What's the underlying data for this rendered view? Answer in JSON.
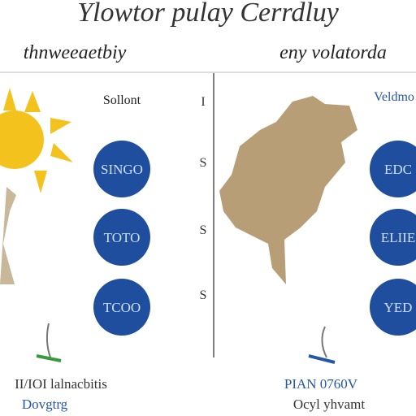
{
  "header": {
    "title": "Ylowtor pulay Cerrdluy"
  },
  "panels": [
    {
      "subtitle": "thnweeaetbiy",
      "label": "Sollont",
      "circles": [
        "SINGO",
        "TOTO",
        "TCOO"
      ],
      "footer": [
        "II/IOI lalnacbitis",
        "Dovgtrg"
      ]
    },
    {
      "subtitle": "eny volatorda",
      "label": "Veldmo",
      "circles": [
        "EDC",
        "ELIIE",
        "YED"
      ],
      "footer": [
        "PIAN 0760V",
        "Ocyl yhvamt"
      ]
    }
  ],
  "divider_marks": [
    "I",
    "S",
    "S",
    "S"
  ]
}
